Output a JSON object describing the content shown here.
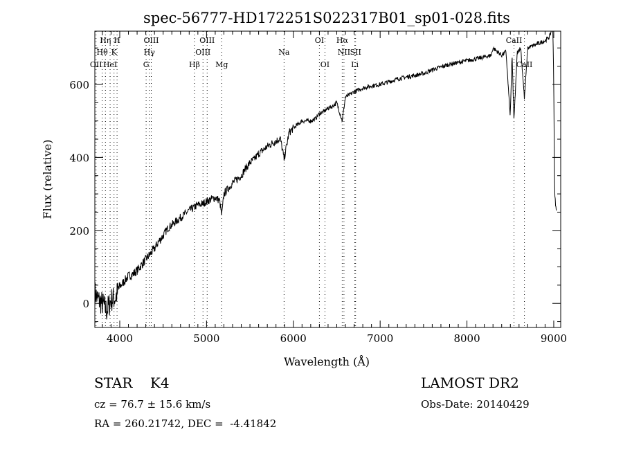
{
  "chart_data": {
    "type": "line",
    "title": "spec-56777-HD172251S022317B01_sp01-028.fits",
    "xlabel": "Wavelength (Å)",
    "ylabel": "Flux (relative)",
    "xlim": [
      3713,
      9080
    ],
    "ylim": [
      -66,
      746
    ],
    "xticks": [
      4000,
      5000,
      6000,
      7000,
      8000,
      9000
    ],
    "xtick_labels": [
      "4000",
      "5000",
      "6000",
      "7000",
      "8000",
      "9000"
    ],
    "yticks": [
      0,
      200,
      400,
      600
    ],
    "ytick_labels": [
      "0",
      "200",
      "400",
      "600"
    ],
    "grid": false,
    "series": [
      {
        "name": "flux",
        "x": [
          3713,
          3750,
          3800,
          3850,
          3900,
          3950,
          4000,
          4050,
          4100,
          4150,
          4200,
          4250,
          4300,
          4350,
          4400,
          4450,
          4500,
          4550,
          4600,
          4650,
          4700,
          4750,
          4800,
          4850,
          4900,
          4950,
          5000,
          5050,
          5100,
          5150,
          5175,
          5200,
          5250,
          5300,
          5350,
          5400,
          5450,
          5500,
          5550,
          5600,
          5650,
          5700,
          5750,
          5800,
          5850,
          5893,
          5950,
          6000,
          6050,
          6100,
          6150,
          6200,
          6250,
          6300,
          6350,
          6400,
          6450,
          6500,
          6563,
          6600,
          6650,
          6700,
          6800,
          6900,
          7000,
          7100,
          7200,
          7300,
          7400,
          7500,
          7600,
          7700,
          7800,
          7900,
          8000,
          8100,
          8200,
          8280,
          8300,
          8350,
          8400,
          8450,
          8498,
          8520,
          8542,
          8580,
          8620,
          8662,
          8700,
          8750,
          8800,
          8850,
          8900,
          8950,
          8990,
          9000,
          9010,
          9030
        ],
        "y": [
          30,
          10,
          0,
          -20,
          10,
          15,
          45,
          60,
          75,
          80,
          90,
          105,
          120,
          135,
          150,
          170,
          185,
          205,
          215,
          225,
          235,
          245,
          255,
          262,
          270,
          272,
          280,
          285,
          290,
          282,
          240,
          300,
          315,
          330,
          340,
          350,
          370,
          385,
          395,
          410,
          420,
          430,
          438,
          445,
          452,
          395,
          468,
          480,
          490,
          500,
          500,
          500,
          505,
          520,
          525,
          535,
          540,
          550,
          500,
          565,
          572,
          580,
          590,
          596,
          600,
          607,
          615,
          620,
          625,
          630,
          640,
          648,
          655,
          660,
          665,
          670,
          675,
          680,
          700,
          690,
          680,
          690,
          510,
          680,
          500,
          690,
          700,
          560,
          700,
          705,
          710,
          715,
          720,
          730,
          760,
          600,
          300,
          250
        ]
      }
    ],
    "line_markers": [
      {
        "label": "OII",
        "wavelength": 3727,
        "row": 3
      },
      {
        "label": "Hθ",
        "wavelength": 3798,
        "row": 2
      },
      {
        "label": "Hη",
        "wavelength": 3835,
        "row": 1
      },
      {
        "label": "HeI",
        "wavelength": 3889,
        "row": 3
      },
      {
        "label": "K",
        "wavelength": 3934,
        "row": 2
      },
      {
        "label": "H",
        "wavelength": 3969,
        "row": 1
      },
      {
        "label": "G",
        "wavelength": 4304,
        "row": 3
      },
      {
        "label": "Hγ",
        "wavelength": 4341,
        "row": 2
      },
      {
        "label": "OIII",
        "wavelength": 4363,
        "row": 1
      },
      {
        "label": "Hβ",
        "wavelength": 4861,
        "row": 3
      },
      {
        "label": "OIII",
        "wavelength": 4959,
        "row": 2
      },
      {
        "label": "OIII",
        "wavelength": 5007,
        "row": 1
      },
      {
        "label": "Mg",
        "wavelength": 5175,
        "row": 3
      },
      {
        "label": "Na",
        "wavelength": 5893,
        "row": 2
      },
      {
        "label": "OI",
        "wavelength": 6300,
        "row": 1
      },
      {
        "label": "OI",
        "wavelength": 6364,
        "row": 3
      },
      {
        "label": "Hα",
        "wavelength": 6563,
        "row": 1
      },
      {
        "label": "NII",
        "wavelength": 6583,
        "row": 2
      },
      {
        "label": "Li",
        "wavelength": 6708,
        "row": 3
      },
      {
        "label": "SII",
        "wavelength": 6717,
        "row": 2
      },
      {
        "label": "CaII",
        "wavelength": 8542,
        "row": 1
      },
      {
        "label": "CaII",
        "wavelength": 8662,
        "row": 3
      }
    ]
  },
  "info": {
    "object_type": "STAR    K4",
    "cz": "cz = 76.7 ± 15.6 km/s",
    "coords": "RA = 260.21742, DEC =  -4.41842",
    "survey": "LAMOST DR2",
    "obs_date": "Obs-Date: 20140429"
  }
}
